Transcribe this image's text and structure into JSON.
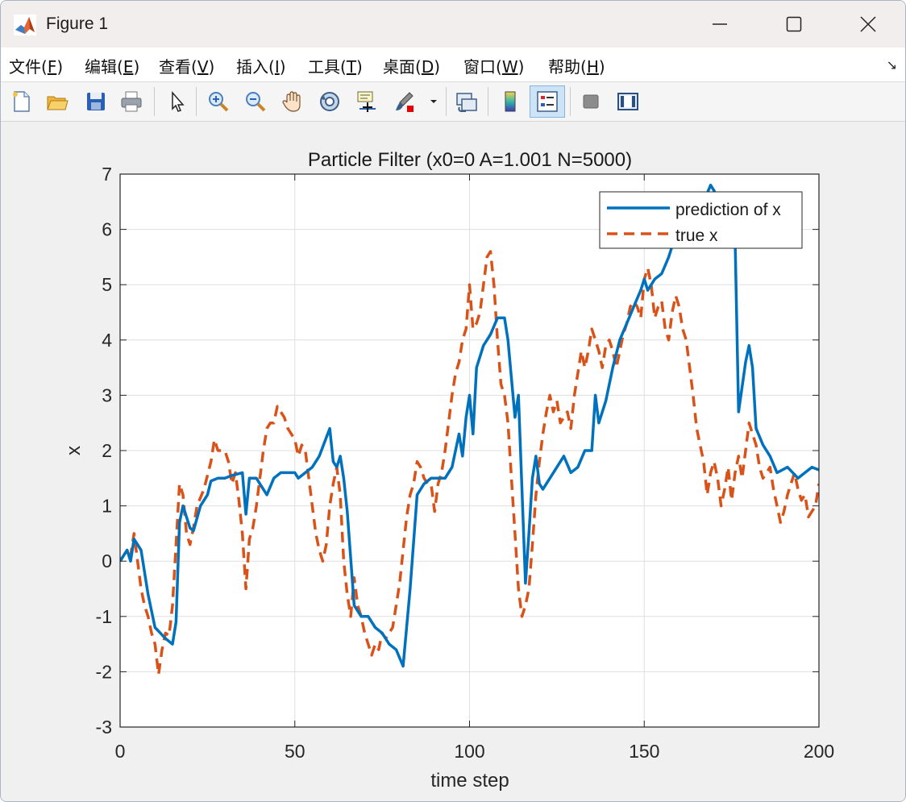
{
  "window": {
    "title": "Figure 1"
  },
  "menu": [
    {
      "label": "文件(",
      "key": "F",
      "tail": ")"
    },
    {
      "label": "编辑(",
      "key": "E",
      "tail": ")"
    },
    {
      "label": "查看(",
      "key": "V",
      "tail": ")"
    },
    {
      "label": "插入(",
      "key": "I",
      "tail": ")"
    },
    {
      "label": "工具(",
      "key": "T",
      "tail": ")"
    },
    {
      "label": "桌面(",
      "key": "D",
      "tail": ")"
    },
    {
      "label": "窗口(",
      "key": "W",
      "tail": ")"
    },
    {
      "label": "帮助(",
      "key": "H",
      "tail": ")"
    }
  ],
  "toolbar": {
    "buttons": [
      "new-figure",
      "open-file",
      "save",
      "print",
      "select-arrow",
      "zoom-in",
      "zoom-out",
      "pan-hand",
      "rotate-3d",
      "data-cursor",
      "brush",
      "link-plot",
      "colorbar",
      "legend",
      "hide-plot-tools",
      "show-plot-tools"
    ],
    "active": "legend"
  },
  "chart_data": {
    "type": "line",
    "title": "Particle Filter (x0=0 A=1.001 N=5000)",
    "xlabel": "time step",
    "ylabel": "x",
    "xlim": [
      0,
      200
    ],
    "ylim": [
      -3,
      7
    ],
    "xticks": [
      "0",
      "50",
      "100",
      "150",
      "200"
    ],
    "yticks": [
      "-3",
      "-2",
      "-1",
      "0",
      "1",
      "2",
      "3",
      "4",
      "5",
      "6",
      "7"
    ],
    "grid": true,
    "legend_position": "top-right",
    "colors": {
      "prediction": "#0072BD",
      "true": "#D95319"
    },
    "series": [
      {
        "name": "prediction of x",
        "style": "solid",
        "points": [
          [
            0,
            0.0
          ],
          [
            2,
            0.2
          ],
          [
            3,
            0.0
          ],
          [
            4,
            0.4
          ],
          [
            6,
            0.2
          ],
          [
            8,
            -0.6
          ],
          [
            10,
            -1.2
          ],
          [
            13,
            -1.4
          ],
          [
            15,
            -1.5
          ],
          [
            16,
            -1.1
          ],
          [
            17,
            0.7
          ],
          [
            18,
            1.0
          ],
          [
            20,
            0.6
          ],
          [
            21,
            0.55
          ],
          [
            23,
            1.0
          ],
          [
            25,
            1.2
          ],
          [
            26,
            1.45
          ],
          [
            28,
            1.5
          ],
          [
            30,
            1.5
          ],
          [
            32,
            1.55
          ],
          [
            35,
            1.6
          ],
          [
            36,
            0.85
          ],
          [
            37,
            1.5
          ],
          [
            39,
            1.5
          ],
          [
            40,
            1.4
          ],
          [
            42,
            1.2
          ],
          [
            44,
            1.5
          ],
          [
            46,
            1.6
          ],
          [
            50,
            1.6
          ],
          [
            51,
            1.5
          ],
          [
            55,
            1.7
          ],
          [
            57,
            1.9
          ],
          [
            60,
            2.4
          ],
          [
            61,
            1.8
          ],
          [
            62,
            1.7
          ],
          [
            63,
            1.9
          ],
          [
            64,
            1.5
          ],
          [
            65,
            0.9
          ],
          [
            67,
            -0.8
          ],
          [
            69,
            -1.0
          ],
          [
            71,
            -1.0
          ],
          [
            73,
            -1.2
          ],
          [
            75,
            -1.3
          ],
          [
            77,
            -1.5
          ],
          [
            79,
            -1.6
          ],
          [
            81,
            -1.9
          ],
          [
            83,
            -0.5
          ],
          [
            85,
            1.2
          ],
          [
            87,
            1.4
          ],
          [
            89,
            1.5
          ],
          [
            91,
            1.5
          ],
          [
            93,
            1.5
          ],
          [
            95,
            1.7
          ],
          [
            97,
            2.3
          ],
          [
            98,
            1.9
          ],
          [
            99,
            2.6
          ],
          [
            100,
            3.0
          ],
          [
            101,
            2.3
          ],
          [
            102,
            3.5
          ],
          [
            104,
            3.9
          ],
          [
            106,
            4.1
          ],
          [
            108,
            4.4
          ],
          [
            110,
            4.4
          ],
          [
            111,
            4.0
          ],
          [
            113,
            2.6
          ],
          [
            114,
            3.0
          ],
          [
            116,
            -0.4
          ],
          [
            117,
            0.5
          ],
          [
            118,
            1.5
          ],
          [
            119,
            1.9
          ],
          [
            120,
            1.4
          ],
          [
            121,
            1.3
          ],
          [
            123,
            1.5
          ],
          [
            125,
            1.7
          ],
          [
            127,
            1.9
          ],
          [
            129,
            1.6
          ],
          [
            131,
            1.7
          ],
          [
            133,
            2.0
          ],
          [
            135,
            2.0
          ],
          [
            136,
            3.0
          ],
          [
            137,
            2.5
          ],
          [
            139,
            2.9
          ],
          [
            141,
            3.5
          ],
          [
            143,
            4.0
          ],
          [
            145,
            4.3
          ],
          [
            147,
            4.6
          ],
          [
            149,
            4.9
          ],
          [
            150,
            5.1
          ],
          [
            151,
            4.9
          ],
          [
            153,
            5.1
          ],
          [
            155,
            5.2
          ],
          [
            157,
            5.5
          ],
          [
            159,
            5.9
          ],
          [
            161,
            6.3
          ],
          [
            163,
            6.4
          ],
          [
            165,
            6.6
          ],
          [
            167,
            6.5
          ],
          [
            169,
            6.8
          ],
          [
            170,
            6.7
          ],
          [
            172,
            6.4
          ],
          [
            174,
            6.2
          ],
          [
            176,
            5.8
          ],
          [
            177,
            2.7
          ],
          [
            179,
            3.6
          ],
          [
            180,
            3.9
          ],
          [
            181,
            3.5
          ],
          [
            182,
            2.4
          ],
          [
            184,
            2.1
          ],
          [
            186,
            1.9
          ],
          [
            188,
            1.6
          ],
          [
            191,
            1.7
          ],
          [
            194,
            1.5
          ],
          [
            196,
            1.6
          ],
          [
            198,
            1.7
          ],
          [
            200,
            1.65
          ]
        ]
      },
      {
        "name": "true x",
        "style": "dashed",
        "points": [
          [
            0,
            0.0
          ],
          [
            1,
            0.1
          ],
          [
            2,
            0.2
          ],
          [
            3,
            0.1
          ],
          [
            4,
            0.5
          ],
          [
            5,
            0.0
          ],
          [
            6,
            -0.5
          ],
          [
            7,
            -0.8
          ],
          [
            8,
            -1.0
          ],
          [
            9,
            -1.3
          ],
          [
            10,
            -1.5
          ],
          [
            11,
            -2.05
          ],
          [
            12,
            -1.6
          ],
          [
            13,
            -1.3
          ],
          [
            14,
            -1.35
          ],
          [
            15,
            -0.8
          ],
          [
            16,
            0.3
          ],
          [
            17,
            1.4
          ],
          [
            18,
            1.2
          ],
          [
            19,
            0.5
          ],
          [
            20,
            0.3
          ],
          [
            21,
            0.6
          ],
          [
            22,
            1.0
          ],
          [
            24,
            1.3
          ],
          [
            26,
            1.8
          ],
          [
            27,
            2.2
          ],
          [
            28,
            2.0
          ],
          [
            30,
            2.0
          ],
          [
            31,
            1.8
          ],
          [
            32,
            1.4
          ],
          [
            33,
            1.6
          ],
          [
            34,
            1.1
          ],
          [
            35,
            0.5
          ],
          [
            36,
            -0.5
          ],
          [
            37,
            0.4
          ],
          [
            38,
            0.6
          ],
          [
            39,
            1.0
          ],
          [
            40,
            1.5
          ],
          [
            41,
            2.0
          ],
          [
            42,
            2.4
          ],
          [
            43,
            2.5
          ],
          [
            44,
            2.5
          ],
          [
            45,
            2.8
          ],
          [
            46,
            2.7
          ],
          [
            47,
            2.6
          ],
          [
            48,
            2.4
          ],
          [
            50,
            2.2
          ],
          [
            51,
            1.9
          ],
          [
            52,
            2.1
          ],
          [
            53,
            2.0
          ],
          [
            54,
            1.5
          ],
          [
            55,
            1.0
          ],
          [
            56,
            0.5
          ],
          [
            57,
            0.2
          ],
          [
            58,
            0.0
          ],
          [
            59,
            0.3
          ],
          [
            60,
            1.0
          ],
          [
            61,
            1.4
          ],
          [
            62,
            1.7
          ],
          [
            63,
            1.2
          ],
          [
            64,
            0.0
          ],
          [
            65,
            -0.6
          ],
          [
            66,
            -1.0
          ],
          [
            67,
            -0.3
          ],
          [
            68,
            -0.8
          ],
          [
            69,
            -1.0
          ],
          [
            70,
            -1.3
          ],
          [
            71,
            -1.5
          ],
          [
            72,
            -1.7
          ],
          [
            73,
            -1.5
          ],
          [
            74,
            -1.6
          ],
          [
            75,
            -1.3
          ],
          [
            76,
            -1.4
          ],
          [
            77,
            -1.3
          ],
          [
            78,
            -1.2
          ],
          [
            79,
            -0.8
          ],
          [
            80,
            -0.4
          ],
          [
            81,
            0.2
          ],
          [
            82,
            0.8
          ],
          [
            83,
            1.2
          ],
          [
            84,
            1.4
          ],
          [
            85,
            1.8
          ],
          [
            86,
            1.7
          ],
          [
            87,
            1.5
          ],
          [
            88,
            1.4
          ],
          [
            89,
            1.4
          ],
          [
            90,
            0.9
          ],
          [
            91,
            1.4
          ],
          [
            92,
            1.6
          ],
          [
            93,
            2.0
          ],
          [
            94,
            2.5
          ],
          [
            95,
            3.0
          ],
          [
            96,
            3.4
          ],
          [
            97,
            3.6
          ],
          [
            98,
            4.0
          ],
          [
            99,
            4.2
          ],
          [
            100,
            5.0
          ],
          [
            101,
            4.2
          ],
          [
            102,
            4.3
          ],
          [
            103,
            4.5
          ],
          [
            104,
            5.0
          ],
          [
            105,
            5.5
          ],
          [
            106,
            5.6
          ],
          [
            107,
            5.0
          ],
          [
            108,
            4.0
          ],
          [
            109,
            3.2
          ],
          [
            110,
            3.0
          ],
          [
            111,
            2.5
          ],
          [
            112,
            1.5
          ],
          [
            113,
            0.5
          ],
          [
            114,
            -0.5
          ],
          [
            115,
            -1.0
          ],
          [
            116,
            -0.8
          ],
          [
            117,
            -0.5
          ],
          [
            118,
            0.3
          ],
          [
            119,
            1.2
          ],
          [
            120,
            1.8
          ],
          [
            121,
            2.3
          ],
          [
            122,
            2.7
          ],
          [
            123,
            3.0
          ],
          [
            124,
            2.7
          ],
          [
            125,
            2.9
          ],
          [
            126,
            2.5
          ],
          [
            127,
            2.6
          ],
          [
            128,
            2.7
          ],
          [
            129,
            2.4
          ],
          [
            130,
            3.0
          ],
          [
            131,
            3.4
          ],
          [
            132,
            3.8
          ],
          [
            133,
            3.5
          ],
          [
            134,
            3.8
          ],
          [
            135,
            4.2
          ],
          [
            136,
            4.0
          ],
          [
            137,
            3.8
          ],
          [
            138,
            3.5
          ],
          [
            139,
            3.9
          ],
          [
            140,
            4.0
          ],
          [
            141,
            3.8
          ],
          [
            142,
            3.5
          ],
          [
            143,
            3.8
          ],
          [
            144,
            4.1
          ],
          [
            145,
            4.3
          ],
          [
            146,
            4.6
          ],
          [
            147,
            4.7
          ],
          [
            148,
            4.6
          ],
          [
            149,
            4.4
          ],
          [
            150,
            5.1
          ],
          [
            151,
            5.3
          ],
          [
            152,
            5.0
          ],
          [
            153,
            4.4
          ],
          [
            154,
            4.6
          ],
          [
            155,
            4.7
          ],
          [
            156,
            4.2
          ],
          [
            157,
            4.0
          ],
          [
            158,
            4.5
          ],
          [
            159,
            4.8
          ],
          [
            160,
            4.6
          ],
          [
            161,
            4.2
          ],
          [
            162,
            4.0
          ],
          [
            163,
            3.5
          ],
          [
            164,
            3.0
          ],
          [
            165,
            2.4
          ],
          [
            166,
            2.1
          ],
          [
            167,
            1.8
          ],
          [
            168,
            1.2
          ],
          [
            169,
            1.6
          ],
          [
            170,
            1.8
          ],
          [
            171,
            1.5
          ],
          [
            172,
            1.0
          ],
          [
            173,
            1.3
          ],
          [
            174,
            1.7
          ],
          [
            175,
            1.1
          ],
          [
            176,
            1.6
          ],
          [
            177,
            1.9
          ],
          [
            178,
            1.5
          ],
          [
            179,
            2.0
          ],
          [
            180,
            2.5
          ],
          [
            181,
            2.3
          ],
          [
            182,
            2.1
          ],
          [
            183,
            1.7
          ],
          [
            184,
            1.5
          ],
          [
            185,
            1.6
          ],
          [
            186,
            1.7
          ],
          [
            187,
            1.3
          ],
          [
            188,
            1.0
          ],
          [
            189,
            0.7
          ],
          [
            190,
            0.9
          ],
          [
            191,
            1.2
          ],
          [
            192,
            1.4
          ],
          [
            193,
            1.6
          ],
          [
            194,
            1.3
          ],
          [
            195,
            1.1
          ],
          [
            196,
            1.2
          ],
          [
            197,
            0.8
          ],
          [
            198,
            0.9
          ],
          [
            199,
            1.0
          ],
          [
            200,
            1.4
          ]
        ]
      }
    ]
  }
}
